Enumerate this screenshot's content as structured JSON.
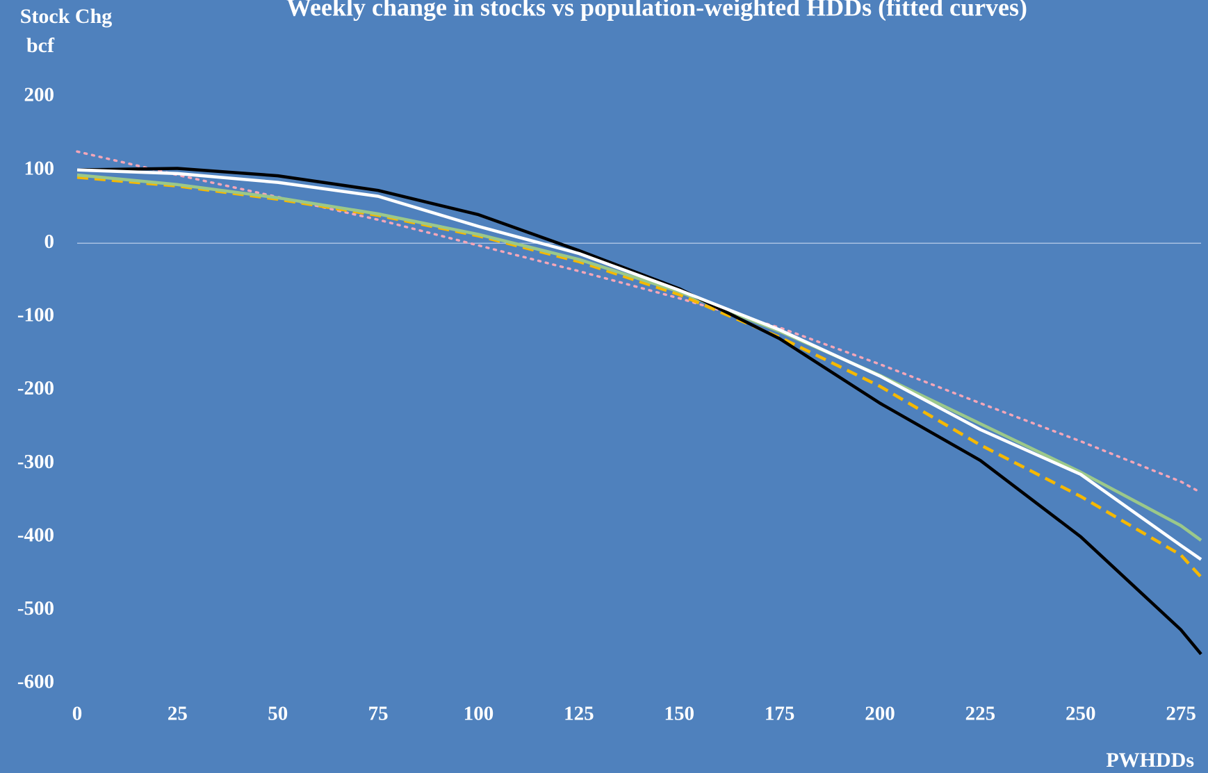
{
  "chart_data": {
    "type": "line",
    "title": "Weekly change in stocks vs population-weighted HDDs (fitted curves)",
    "ylabel": [
      "Stock Chg",
      "bcf"
    ],
    "xlabel": "PWHDDs",
    "x": [
      0,
      25,
      50,
      75,
      100,
      125,
      150,
      175,
      200,
      225,
      250,
      275,
      280
    ],
    "xlim": [
      0,
      280
    ],
    "xticks": [
      0,
      25,
      50,
      75,
      100,
      125,
      150,
      175,
      200,
      225,
      250,
      275
    ],
    "ylim": [
      -600,
      200
    ],
    "yticks": [
      200,
      100,
      0,
      -100,
      -200,
      -300,
      -400,
      -500,
      -600
    ],
    "grid": false,
    "zero_line": true,
    "series": [
      {
        "color": "#f4a6b8",
        "dash": "dotted",
        "values": [
          125,
          93,
          63,
          32,
          -3,
          -38,
          -75,
          -115,
          -165,
          -218,
          -270,
          -325,
          -340
        ]
      },
      {
        "color": "#f5b800",
        "dash": "dashed",
        "values": [
          90,
          78,
          60,
          38,
          10,
          -25,
          -70,
          -128,
          -195,
          -275,
          -345,
          -425,
          -455
        ]
      },
      {
        "color": "#9bc88a",
        "dash": "solid",
        "values": [
          93,
          80,
          62,
          40,
          12,
          -22,
          -66,
          -120,
          -180,
          -246,
          -312,
          -385,
          -405
        ]
      },
      {
        "color": "#000000",
        "dash": "solid",
        "values": [
          100,
          102,
          92,
          72,
          39,
          -10,
          -62,
          -130,
          -218,
          -296,
          -400,
          -527,
          -560
        ]
      },
      {
        "color": "#ffffff",
        "dash": "solid",
        "values": [
          100,
          95,
          83,
          64,
          23,
          -14,
          -64,
          -118,
          -181,
          -254,
          -315,
          -412,
          -431
        ]
      }
    ]
  }
}
